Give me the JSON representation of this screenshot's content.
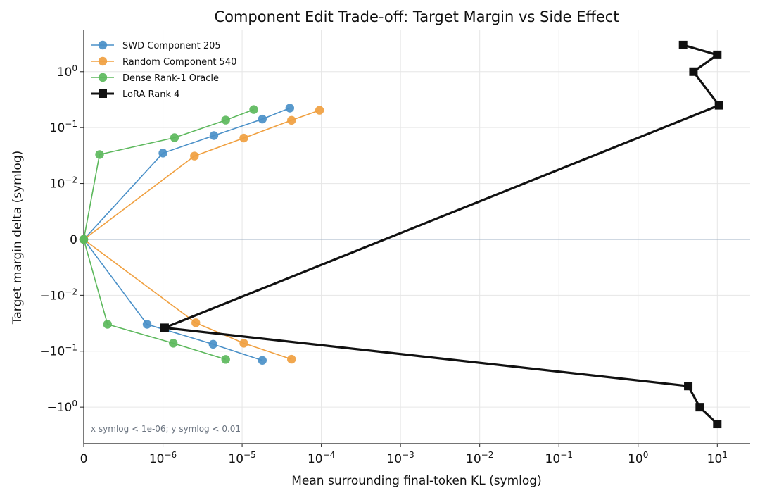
{
  "chart_data": {
    "type": "line",
    "title": "Component Edit Trade-off: Target Margin vs Side Effect",
    "xlabel": "Mean surrounding final-token KL (symlog)",
    "ylabel": "Target margin delta (symlog)",
    "xscale": "symlog",
    "xlinthresh": 1e-06,
    "yscale": "symlog",
    "ylinthresh": 0.01,
    "xlim": [
      0,
      26
    ],
    "ylim": [
      -4.5,
      5.5
    ],
    "xticks": [
      {
        "value": 0,
        "label": "0",
        "sup": ""
      },
      {
        "value": 1e-06,
        "label": "10",
        "sup": "−6"
      },
      {
        "value": 1e-05,
        "label": "10",
        "sup": "−5"
      },
      {
        "value": 0.0001,
        "label": "10",
        "sup": "−4"
      },
      {
        "value": 0.001,
        "label": "10",
        "sup": "−3"
      },
      {
        "value": 0.01,
        "label": "10",
        "sup": "−2"
      },
      {
        "value": 0.1,
        "label": "10",
        "sup": "−1"
      },
      {
        "value": 1,
        "label": "10",
        "sup": "0"
      },
      {
        "value": 10,
        "label": "10",
        "sup": "1"
      }
    ],
    "yticks": [
      {
        "value": 1,
        "label": "10",
        "sup": "0"
      },
      {
        "value": 0.1,
        "label": "10",
        "sup": "−1"
      },
      {
        "value": 0.01,
        "label": "10",
        "sup": "−2"
      },
      {
        "value": 0,
        "label": "0",
        "sup": ""
      },
      {
        "value": -0.01,
        "label": "−10",
        "sup": "−2"
      },
      {
        "value": -0.1,
        "label": "−10",
        "sup": "−1"
      },
      {
        "value": -1,
        "label": "−10",
        "sup": "0"
      }
    ],
    "grid": true,
    "zero_line": true,
    "legend_position": "top-left",
    "annotation": "x symlog < 1e-06; y symlog < 0.01",
    "series": [
      {
        "name": "SWD Component 205",
        "color": "#4a90c8",
        "marker": "circle",
        "segments": [
          [
            [
              0,
              0
            ],
            [
              1e-06,
              0.035
            ],
            [
              4.4e-06,
              0.072
            ],
            [
              1.8e-05,
              0.142
            ],
            [
              4e-05,
              0.223
            ]
          ],
          [
            [
              0,
              0
            ],
            [
              8e-07,
              -0.033
            ],
            [
              4.3e-06,
              -0.075
            ],
            [
              1.8e-05,
              -0.146
            ]
          ]
        ]
      },
      {
        "name": "Random Component 540",
        "color": "#f0a040",
        "marker": "circle",
        "segments": [
          [
            [
              0,
              0
            ],
            [
              2.5e-06,
              0.031
            ],
            [
              1.05e-05,
              0.065
            ],
            [
              4.2e-05,
              0.135
            ],
            [
              9.5e-05,
              0.204
            ]
          ],
          [
            [
              0,
              0
            ],
            [
              2.6e-06,
              -0.031
            ],
            [
              1.05e-05,
              -0.072
            ],
            [
              4.2e-05,
              -0.139
            ]
          ]
        ]
      },
      {
        "name": "Dense Rank-1 Oracle",
        "color": "#5cb85c",
        "marker": "circle",
        "segments": [
          [
            [
              0,
              0
            ],
            [
              2e-07,
              0.033
            ],
            [
              1.4e-06,
              0.066
            ],
            [
              6.2e-06,
              0.136
            ],
            [
              1.4e-05,
              0.21
            ]
          ],
          [
            [
              0,
              0
            ],
            [
              3e-07,
              -0.033
            ],
            [
              1.35e-06,
              -0.072
            ],
            [
              6.2e-06,
              -0.14
            ]
          ]
        ]
      },
      {
        "name": "LoRA Rank 4",
        "color": "#111111",
        "marker": "square",
        "segments": [
          [
            [
              3.7,
              3.0
            ],
            [
              10.0,
              2.0
            ],
            [
              5.0,
              1.0
            ],
            [
              10.5,
              0.25
            ],
            [
              1.05e-06,
              -0.038
            ],
            [
              4.3,
              -0.42
            ],
            [
              6.0,
              -1.0
            ],
            [
              10.0,
              -2.0
            ]
          ]
        ]
      }
    ]
  }
}
